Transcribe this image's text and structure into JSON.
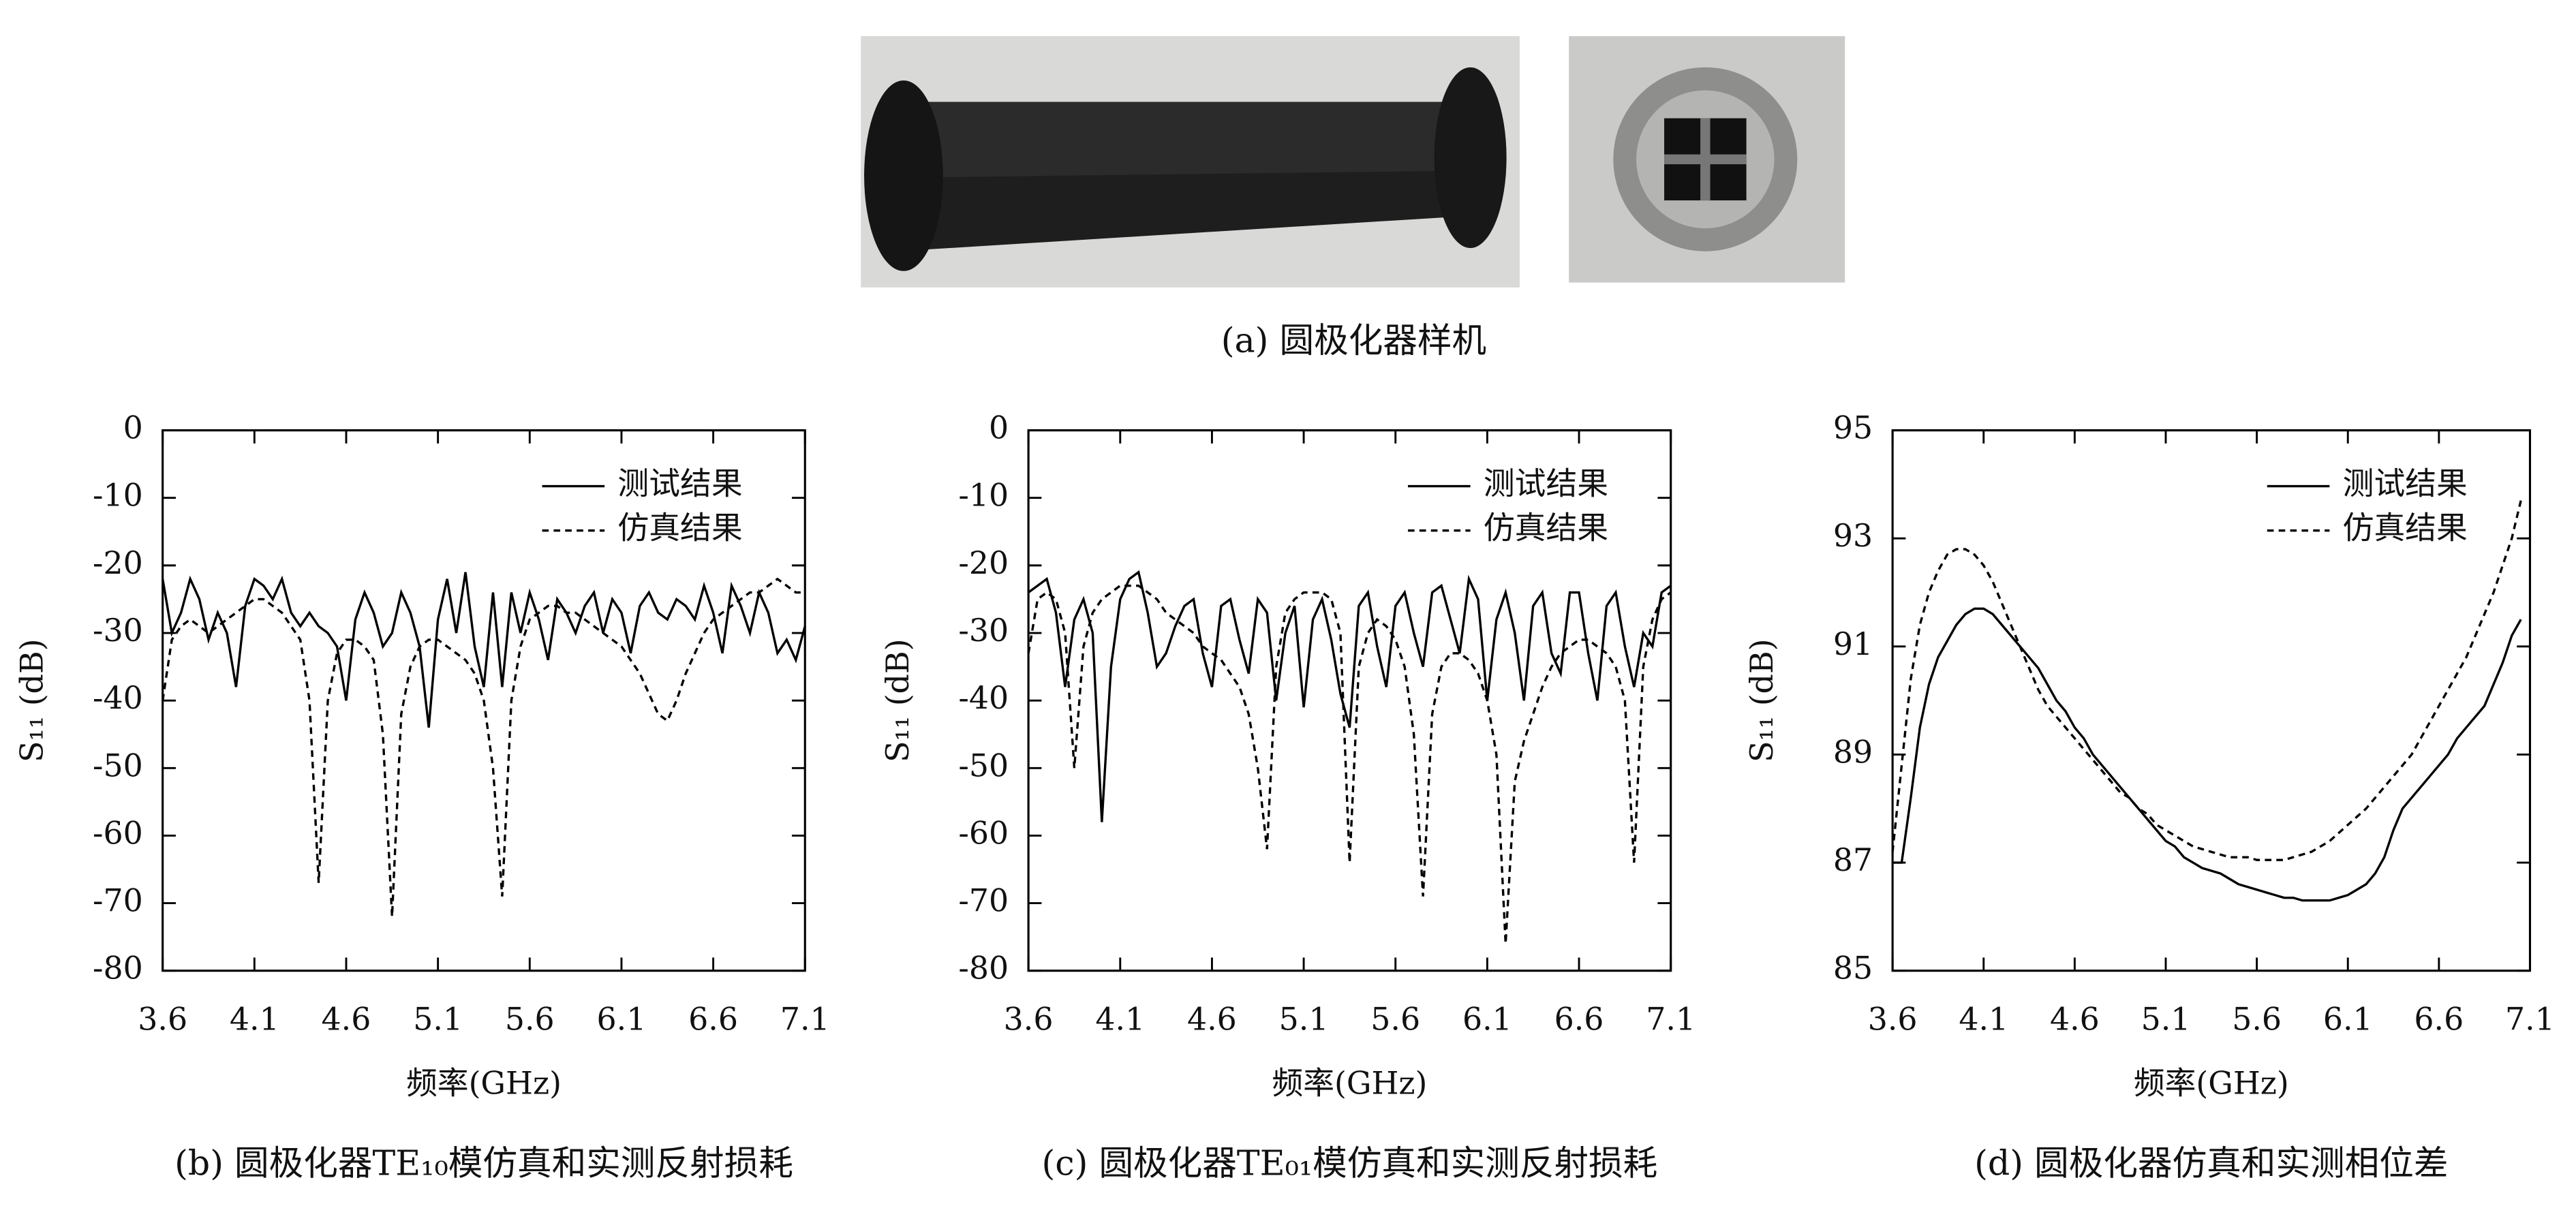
{
  "photo_caption": "(a) 圆极化器样机",
  "chart_data": [
    {
      "type": "line",
      "caption": "(b) 圆极化器TE₁₀模仿真和实测反射损耗",
      "xlabel": "频率(GHz)",
      "ylabel": "S₁₁ (dB)",
      "x": [
        3.6,
        3.65,
        3.7,
        3.75,
        3.8,
        3.85,
        3.9,
        3.95,
        4.0,
        4.05,
        4.1,
        4.15,
        4.2,
        4.25,
        4.3,
        4.35,
        4.4,
        4.45,
        4.5,
        4.55,
        4.6,
        4.65,
        4.7,
        4.75,
        4.8,
        4.85,
        4.9,
        4.95,
        5.0,
        5.05,
        5.1,
        5.15,
        5.2,
        5.25,
        5.3,
        5.35,
        5.4,
        5.45,
        5.5,
        5.55,
        5.6,
        5.65,
        5.7,
        5.75,
        5.8,
        5.85,
        5.9,
        5.95,
        6.0,
        6.05,
        6.1,
        6.15,
        6.2,
        6.25,
        6.3,
        6.35,
        6.4,
        6.45,
        6.5,
        6.55,
        6.6,
        6.65,
        6.7,
        6.75,
        6.8,
        6.85,
        6.9,
        6.95,
        7.0,
        7.05,
        7.1
      ],
      "series": [
        {
          "name": "测试结果",
          "color": "#000000",
          "linestyle": "solid",
          "values": [
            -22,
            -30,
            -27,
            -22,
            -25,
            -31,
            -27,
            -30,
            -38,
            -26,
            -22,
            -23,
            -25,
            -22,
            -27,
            -29,
            -27,
            -29,
            -30,
            -32,
            -40,
            -28,
            -24,
            -27,
            -32,
            -30,
            -24,
            -27,
            -32,
            -44,
            -28,
            -22,
            -30,
            -21,
            -32,
            -38,
            -24,
            -38,
            -24,
            -30,
            -24,
            -28,
            -34,
            -25,
            -27,
            -30,
            -26,
            -24,
            -30,
            -25,
            -27,
            -33,
            -26,
            -24,
            -27,
            -28,
            -25,
            -26,
            -28,
            -23,
            -27,
            -33,
            -23,
            -26,
            -30,
            -24,
            -27,
            -33,
            -31,
            -34,
            -29
          ]
        },
        {
          "name": "仿真结果",
          "color": "#000000",
          "linestyle": "dashed",
          "values": [
            -40,
            -31,
            -29,
            -28,
            -29,
            -30,
            -29,
            -28,
            -27,
            -26,
            -25,
            -25,
            -26,
            -27,
            -29,
            -31,
            -40,
            -67,
            -40,
            -33,
            -31,
            -31,
            -32,
            -34,
            -45,
            -72,
            -42,
            -35,
            -32,
            -31,
            -31,
            -32,
            -33,
            -34,
            -36,
            -40,
            -50,
            -69,
            -40,
            -32,
            -28,
            -27,
            -26,
            -26,
            -27,
            -27,
            -28,
            -29,
            -30,
            -31,
            -32,
            -34,
            -36,
            -39,
            -42,
            -43,
            -40,
            -36,
            -33,
            -30,
            -28,
            -27,
            -26,
            -25,
            -24,
            -24,
            -23,
            -22,
            -23,
            -24,
            -24
          ]
        }
      ],
      "xlim": [
        3.6,
        7.1
      ],
      "ylim": [
        -80,
        0
      ],
      "xticks": [
        3.6,
        4.1,
        4.6,
        5.1,
        5.6,
        6.1,
        6.6,
        7.1
      ],
      "yticks": [
        0,
        -10,
        -20,
        -30,
        -40,
        -50,
        -60,
        -70,
        -80
      ],
      "legend": "upper right"
    },
    {
      "type": "line",
      "caption": "(c) 圆极化器TE₀₁模仿真和实测反射损耗",
      "xlabel": "频率(GHz)",
      "ylabel": "S₁₁ (dB)",
      "x": [
        3.6,
        3.65,
        3.7,
        3.75,
        3.8,
        3.85,
        3.9,
        3.95,
        4.0,
        4.05,
        4.1,
        4.15,
        4.2,
        4.25,
        4.3,
        4.35,
        4.4,
        4.45,
        4.5,
        4.55,
        4.6,
        4.65,
        4.7,
        4.75,
        4.8,
        4.85,
        4.9,
        4.95,
        5.0,
        5.05,
        5.1,
        5.15,
        5.2,
        5.25,
        5.3,
        5.35,
        5.4,
        5.45,
        5.5,
        5.55,
        5.6,
        5.65,
        5.7,
        5.75,
        5.8,
        5.85,
        5.9,
        5.95,
        6.0,
        6.05,
        6.1,
        6.15,
        6.2,
        6.25,
        6.3,
        6.35,
        6.4,
        6.45,
        6.5,
        6.55,
        6.6,
        6.65,
        6.7,
        6.75,
        6.8,
        6.85,
        6.9,
        6.95,
        7.0,
        7.05,
        7.1
      ],
      "series": [
        {
          "name": "测试结果",
          "color": "#000000",
          "linestyle": "solid",
          "values": [
            -24,
            -23,
            -22,
            -27,
            -38,
            -28,
            -25,
            -30,
            -58,
            -35,
            -25,
            -22,
            -21,
            -27,
            -35,
            -33,
            -29,
            -26,
            -25,
            -33,
            -38,
            -26,
            -25,
            -31,
            -36,
            -25,
            -27,
            -40,
            -30,
            -26,
            -41,
            -28,
            -25,
            -31,
            -39,
            -44,
            -26,
            -24,
            -32,
            -38,
            -26,
            -24,
            -30,
            -35,
            -24,
            -23,
            -28,
            -33,
            -22,
            -25,
            -40,
            -28,
            -24,
            -30,
            -40,
            -26,
            -24,
            -33,
            -36,
            -24,
            -24,
            -33,
            -40,
            -26,
            -24,
            -32,
            -38,
            -30,
            -32,
            -24,
            -23
          ]
        },
        {
          "name": "仿真结果",
          "color": "#000000",
          "linestyle": "dashed",
          "values": [
            -33,
            -25,
            -24,
            -25,
            -30,
            -50,
            -32,
            -27,
            -25,
            -24,
            -23,
            -23,
            -23,
            -24,
            -25,
            -27,
            -28,
            -29,
            -30,
            -32,
            -33,
            -34,
            -36,
            -38,
            -42,
            -50,
            -62,
            -35,
            -27,
            -25,
            -24,
            -24,
            -24,
            -25,
            -30,
            -64,
            -35,
            -30,
            -28,
            -29,
            -31,
            -35,
            -45,
            -69,
            -42,
            -35,
            -33,
            -33,
            -34,
            -36,
            -40,
            -48,
            -76,
            -52,
            -46,
            -42,
            -38,
            -35,
            -33,
            -32,
            -31,
            -31,
            -32,
            -33,
            -35,
            -40,
            -64,
            -35,
            -28,
            -25,
            -24
          ]
        }
      ],
      "xlim": [
        3.6,
        7.1
      ],
      "ylim": [
        -80,
        0
      ],
      "xticks": [
        3.6,
        4.1,
        4.6,
        5.1,
        5.6,
        6.1,
        6.6,
        7.1
      ],
      "yticks": [
        0,
        -10,
        -20,
        -30,
        -40,
        -50,
        -60,
        -70,
        -80
      ],
      "legend": "upper right"
    },
    {
      "type": "line",
      "caption": "(d) 圆极化器仿真和实测相位差",
      "xlabel": "频率(GHz)",
      "ylabel": "S₁₁ (dB)",
      "x": [
        3.6,
        3.65,
        3.7,
        3.75,
        3.8,
        3.85,
        3.9,
        3.95,
        4.0,
        4.05,
        4.1,
        4.15,
        4.2,
        4.25,
        4.3,
        4.35,
        4.4,
        4.45,
        4.5,
        4.55,
        4.6,
        4.65,
        4.7,
        4.75,
        4.8,
        4.85,
        4.9,
        4.95,
        5.0,
        5.05,
        5.1,
        5.15,
        5.2,
        5.25,
        5.3,
        5.35,
        5.4,
        5.45,
        5.5,
        5.55,
        5.6,
        5.65,
        5.7,
        5.75,
        5.8,
        5.85,
        5.9,
        5.95,
        6.0,
        6.05,
        6.1,
        6.15,
        6.2,
        6.25,
        6.3,
        6.35,
        6.4,
        6.45,
        6.5,
        6.55,
        6.6,
        6.65,
        6.7,
        6.75,
        6.8,
        6.85,
        6.9,
        6.95,
        7.0,
        7.05,
        7.1
      ],
      "series": [
        {
          "name": "测试结果",
          "color": "#000000",
          "linestyle": "solid",
          "values": [
            87.0,
            87.0,
            88.2,
            89.5,
            90.3,
            90.8,
            91.1,
            91.4,
            91.6,
            91.7,
            91.7,
            91.6,
            91.4,
            91.2,
            91.0,
            90.8,
            90.6,
            90.3,
            90.0,
            89.8,
            89.5,
            89.3,
            89.0,
            88.8,
            88.6,
            88.4,
            88.2,
            88.0,
            87.8,
            87.6,
            87.4,
            87.3,
            87.1,
            87.0,
            86.9,
            86.85,
            86.8,
            86.7,
            86.6,
            86.55,
            86.5,
            86.45,
            86.4,
            86.35,
            86.35,
            86.3,
            86.3,
            86.3,
            86.3,
            86.35,
            86.4,
            86.5,
            86.6,
            86.8,
            87.1,
            87.6,
            88.0,
            88.2,
            88.4,
            88.6,
            88.8,
            89.0,
            89.3,
            89.5,
            89.7,
            89.9,
            90.3,
            90.7,
            91.2,
            91.5,
            null
          ]
        },
        {
          "name": "仿真结果",
          "color": "#000000",
          "linestyle": "dashed",
          "values": [
            87.2,
            88.8,
            90.4,
            91.4,
            92.0,
            92.4,
            92.7,
            92.8,
            92.8,
            92.7,
            92.5,
            92.2,
            91.8,
            91.4,
            91.0,
            90.6,
            90.2,
            89.9,
            89.7,
            89.5,
            89.3,
            89.1,
            88.9,
            88.7,
            88.5,
            88.3,
            88.2,
            88.0,
            87.9,
            87.7,
            87.6,
            87.5,
            87.4,
            87.3,
            87.25,
            87.2,
            87.15,
            87.1,
            87.1,
            87.1,
            87.05,
            87.05,
            87.05,
            87.05,
            87.1,
            87.15,
            87.2,
            87.3,
            87.4,
            87.55,
            87.7,
            87.85,
            88.0,
            88.2,
            88.4,
            88.6,
            88.8,
            89.0,
            89.3,
            89.6,
            89.9,
            90.2,
            90.5,
            90.8,
            91.2,
            91.6,
            92.0,
            92.5,
            93.0,
            93.7,
            null
          ]
        }
      ],
      "xlim": [
        3.6,
        7.1
      ],
      "ylim": [
        85,
        95
      ],
      "xticks": [
        3.6,
        4.1,
        4.6,
        5.1,
        5.6,
        6.1,
        6.6,
        7.1
      ],
      "yticks": [
        85,
        87,
        89,
        91,
        93,
        95
      ],
      "legend": "upper right"
    }
  ]
}
